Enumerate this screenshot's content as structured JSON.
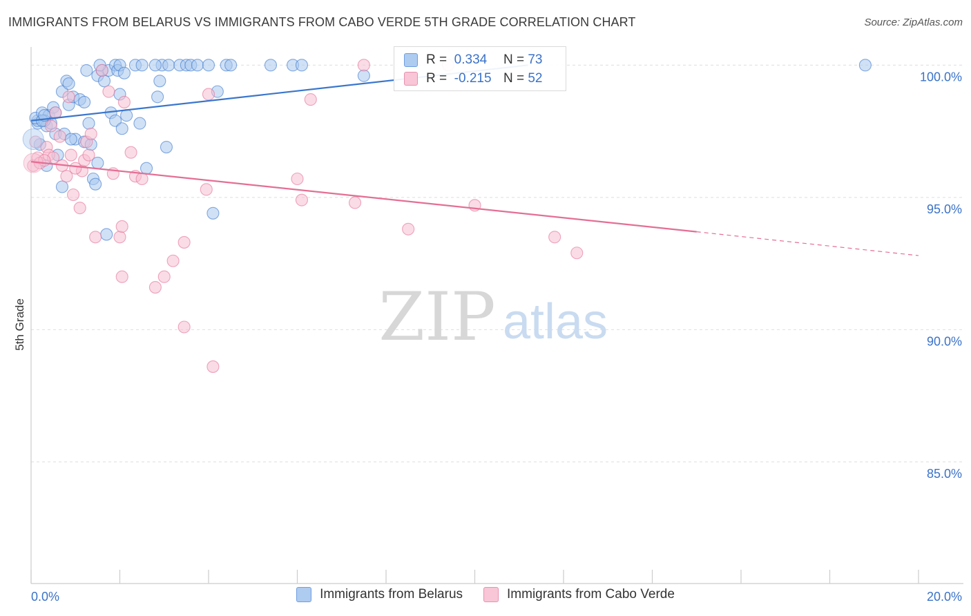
{
  "header": {
    "title": "IMMIGRANTS FROM BELARUS VS IMMIGRANTS FROM CABO VERDE 5TH GRADE CORRELATION CHART",
    "source": "Source: ZipAtlas.com"
  },
  "watermark": {
    "zip": "ZIP",
    "atlas": "atlas"
  },
  "legend": {
    "r_label": "R =",
    "n_label": "N =",
    "rows": [
      {
        "r": "0.334",
        "n": "73",
        "color": "#6f9ee0",
        "fill": "#aecbf0"
      },
      {
        "r": "-0.215",
        "n": "52",
        "color": "#e890ae",
        "fill": "#f8c6d6"
      }
    ]
  },
  "chart_data": {
    "type": "scatter",
    "title": "IMMIGRANTS FROM BELARUS VS IMMIGRANTS FROM CABO VERDE 5TH GRADE CORRELATION CHART",
    "xlabel": "",
    "ylabel": "5th Grade",
    "xlim": [
      0,
      20
    ],
    "ylim": [
      80.4,
      100.4
    ],
    "x_tick_labels": [
      "0.0%",
      "20.0%"
    ],
    "y_ticks": [
      {
        "value": 85,
        "label": "85.0%"
      },
      {
        "value": 90,
        "label": "90.0%"
      },
      {
        "value": 95,
        "label": "95.0%"
      },
      {
        "value": 100,
        "label": "100.0%"
      }
    ],
    "grid": true,
    "legend_position": "top-center",
    "series": [
      {
        "name": "Immigrants from Belarus",
        "color": "#3a76cc",
        "marker_fill": "#a9c8ef",
        "trend": {
          "x": [
            0.0,
            11.2
          ],
          "y": [
            97.9,
            100.0
          ]
        },
        "points": [
          [
            0.15,
            97.8
          ],
          [
            0.15,
            97.9
          ],
          [
            0.1,
            98.0
          ],
          [
            0.25,
            98.2
          ],
          [
            0.35,
            97.7
          ],
          [
            0.4,
            98.1
          ],
          [
            0.5,
            98.4
          ],
          [
            0.45,
            97.8
          ],
          [
            0.3,
            97.9
          ],
          [
            0.2,
            97.0
          ],
          [
            0.35,
            96.2
          ],
          [
            0.55,
            97.4
          ],
          [
            0.6,
            96.6
          ],
          [
            0.7,
            99.0
          ],
          [
            0.8,
            99.4
          ],
          [
            0.85,
            99.3
          ],
          [
            0.85,
            98.5
          ],
          [
            0.95,
            98.8
          ],
          [
            1.1,
            98.7
          ],
          [
            1.2,
            98.6
          ],
          [
            1.0,
            97.2
          ],
          [
            1.2,
            97.1
          ],
          [
            0.75,
            97.4
          ],
          [
            0.7,
            95.4
          ],
          [
            0.9,
            97.2
          ],
          [
            1.3,
            97.8
          ],
          [
            1.35,
            97.0
          ],
          [
            1.25,
            99.8
          ],
          [
            1.5,
            99.6
          ],
          [
            1.5,
            96.3
          ],
          [
            1.6,
            99.8
          ],
          [
            1.65,
            99.4
          ],
          [
            1.75,
            99.8
          ],
          [
            1.9,
            100.0
          ],
          [
            1.95,
            99.8
          ],
          [
            2.0,
            100.0
          ],
          [
            1.8,
            98.2
          ],
          [
            1.9,
            97.9
          ],
          [
            2.0,
            98.9
          ],
          [
            2.05,
            97.6
          ],
          [
            2.1,
            99.7
          ],
          [
            2.15,
            98.1
          ],
          [
            2.35,
            100.0
          ],
          [
            2.45,
            97.8
          ],
          [
            2.5,
            100.0
          ],
          [
            2.6,
            96.1
          ],
          [
            2.85,
            98.8
          ],
          [
            2.9,
            99.4
          ],
          [
            2.95,
            100.0
          ],
          [
            3.1,
            100.0
          ],
          [
            3.05,
            96.9
          ],
          [
            3.35,
            100.0
          ],
          [
            3.5,
            100.0
          ],
          [
            3.6,
            100.0
          ],
          [
            3.75,
            100.0
          ],
          [
            4.0,
            100.0
          ],
          [
            4.2,
            99.0
          ],
          [
            4.1,
            94.4
          ],
          [
            4.4,
            100.0
          ],
          [
            4.5,
            100.0
          ],
          [
            5.4,
            100.0
          ],
          [
            5.9,
            100.0
          ],
          [
            6.1,
            100.0
          ],
          [
            7.5,
            99.6
          ],
          [
            18.8,
            100.0
          ],
          [
            1.7,
            93.6
          ],
          [
            1.4,
            95.7
          ],
          [
            1.45,
            95.5
          ],
          [
            0.55,
            98.2
          ],
          [
            0.25,
            97.9
          ],
          [
            0.3,
            98.1
          ],
          [
            2.8,
            100.0
          ],
          [
            1.55,
            100.0
          ]
        ]
      },
      {
        "name": "Immigrants from Cabo Verde",
        "color": "#e46e94",
        "marker_fill": "#f6bfd1",
        "trend": {
          "x": [
            0.0,
            15.0
          ],
          "y": [
            96.35,
            93.7
          ]
        },
        "trend_dashed": {
          "x": [
            15.0,
            20.0
          ],
          "y": [
            93.7,
            92.8
          ]
        },
        "points": [
          [
            0.05,
            96.2
          ],
          [
            0.1,
            97.1
          ],
          [
            0.15,
            96.5
          ],
          [
            0.2,
            96.3
          ],
          [
            0.35,
            96.9
          ],
          [
            0.4,
            96.6
          ],
          [
            0.5,
            96.5
          ],
          [
            0.55,
            98.2
          ],
          [
            0.65,
            97.3
          ],
          [
            0.7,
            96.2
          ],
          [
            0.8,
            95.8
          ],
          [
            0.85,
            98.8
          ],
          [
            0.9,
            96.6
          ],
          [
            0.95,
            95.1
          ],
          [
            1.1,
            94.6
          ],
          [
            1.15,
            96.0
          ],
          [
            1.2,
            96.4
          ],
          [
            1.25,
            97.1
          ],
          [
            1.3,
            96.6
          ],
          [
            1.35,
            97.4
          ],
          [
            1.45,
            93.5
          ],
          [
            1.6,
            99.8
          ],
          [
            1.75,
            99.0
          ],
          [
            1.85,
            95.9
          ],
          [
            2.0,
            93.5
          ],
          [
            2.05,
            93.9
          ],
          [
            2.05,
            92.0
          ],
          [
            2.1,
            98.6
          ],
          [
            2.25,
            96.7
          ],
          [
            2.35,
            95.8
          ],
          [
            2.5,
            95.7
          ],
          [
            2.8,
            91.6
          ],
          [
            3.0,
            92.0
          ],
          [
            3.2,
            92.6
          ],
          [
            3.45,
            93.3
          ],
          [
            3.45,
            90.1
          ],
          [
            3.95,
            95.3
          ],
          [
            4.0,
            98.9
          ],
          [
            4.1,
            88.6
          ],
          [
            6.0,
            95.7
          ],
          [
            6.1,
            94.9
          ],
          [
            6.3,
            98.7
          ],
          [
            7.3,
            94.8
          ],
          [
            7.5,
            100.0
          ],
          [
            8.5,
            93.8
          ],
          [
            9.4,
            100.0
          ],
          [
            10.0,
            94.7
          ],
          [
            11.8,
            93.5
          ],
          [
            12.3,
            92.9
          ],
          [
            0.45,
            97.7
          ],
          [
            0.3,
            96.4
          ],
          [
            1.0,
            96.1
          ]
        ]
      }
    ]
  },
  "bottom_legend": [
    {
      "label": "Immigrants from Belarus"
    },
    {
      "label": "Immigrants from Cabo Verde"
    }
  ]
}
